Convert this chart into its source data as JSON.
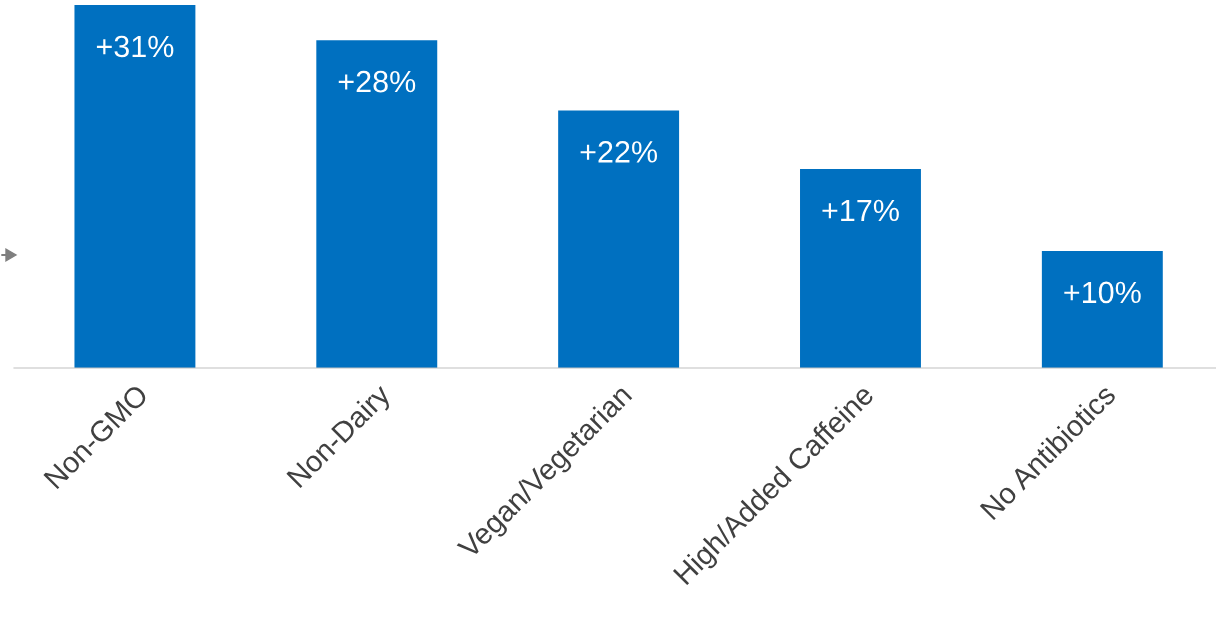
{
  "chart_data": {
    "type": "bar",
    "categories": [
      "Non-GMO",
      "Non-Dairy",
      "Vegan/Vegetarian",
      "High/Added Caffeine",
      "No Antibiotics"
    ],
    "values": [
      31,
      28,
      22,
      17,
      10
    ],
    "value_labels": [
      "+31%",
      "+28%",
      "+22%",
      "+17%",
      "+10%"
    ],
    "color": "#0070c0",
    "grid": false,
    "legend": false
  }
}
